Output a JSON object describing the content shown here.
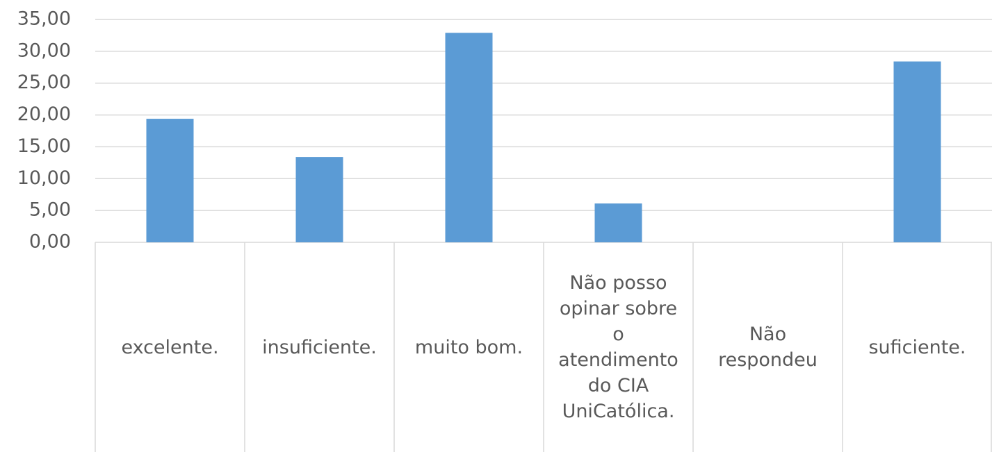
{
  "chart_data": {
    "type": "bar",
    "categories": [
      "excelente.",
      "insuficiente.",
      "muito bom.",
      "Não posso opinar sobre o atendimento do CIA UniCatólica.",
      "Não respondeu",
      "suficiente."
    ],
    "values": [
      19.4,
      13.4,
      32.9,
      6.1,
      0,
      28.4
    ],
    "color": "#5b9bd5",
    "ylim": [
      0,
      35
    ],
    "yticks": [
      {
        "value": 0,
        "label": "0,00"
      },
      {
        "value": 5,
        "label": "5,00"
      },
      {
        "value": 10,
        "label": "10,00"
      },
      {
        "value": 15,
        "label": "15,00"
      },
      {
        "value": 20,
        "label": "20,00"
      },
      {
        "value": 25,
        "label": "25,00"
      },
      {
        "value": 30,
        "label": "30,00"
      },
      {
        "value": 35,
        "label": "35,00"
      }
    ],
    "grid": true
  }
}
